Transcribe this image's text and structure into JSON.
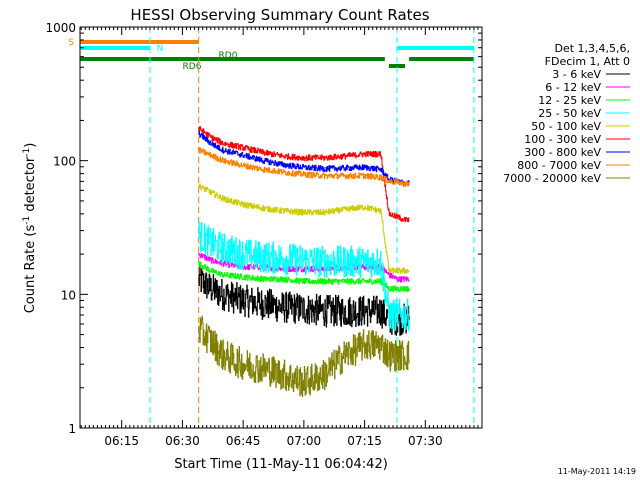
{
  "chart_data": {
    "type": "line",
    "title": "HESSI Observing Summary Count Rates",
    "xlabel": "Start Time (11-May-11 06:04:42)",
    "ylabel_main": "Count Rate (s",
    "ylabel_sup1": "-1",
    "ylabel_mid": " detector",
    "ylabel_sup2": "-1",
    "ylabel_end": ")",
    "y_scale": "log",
    "xlim": [
      "06:04:42",
      "07:44:00"
    ],
    "ylim": [
      1,
      1000
    ],
    "x_ticks": [
      "06:15",
      "06:30",
      "06:45",
      "07:00",
      "07:15",
      "07:30"
    ],
    "y_ticks": [
      "1",
      "10",
      "100",
      "1000"
    ],
    "legend_header": [
      "Det 1,3,4,5,6,",
      "FDecim 1, Att 0"
    ],
    "legend_position": "right",
    "timestamp": "11-May-2011 14:19",
    "series": [
      {
        "name": "3 - 6 keV",
        "color": "#000000",
        "x": [
          "06:34",
          "06:37",
          "06:40",
          "06:45",
          "06:50",
          "06:55",
          "07:00",
          "07:05",
          "07:10",
          "07:15",
          "07:19",
          "07:21",
          "07:23",
          "07:25",
          "07:26"
        ],
        "values": [
          13,
          11,
          10,
          9,
          8.5,
          8,
          7.8,
          7.5,
          7.5,
          7.5,
          7.5,
          6.5,
          6.5,
          6.5,
          6.5
        ]
      },
      {
        "name": "6 - 12 keV",
        "color": "#ff00ff",
        "x": [
          "06:34",
          "06:37",
          "06:40",
          "06:45",
          "06:50",
          "06:55",
          "07:00",
          "07:05",
          "07:10",
          "07:15",
          "07:19",
          "07:21",
          "07:23",
          "07:25",
          "07:26"
        ],
        "values": [
          20,
          18,
          17,
          16,
          16,
          15.5,
          15.5,
          15.5,
          16,
          16,
          16,
          14,
          13,
          13,
          13
        ]
      },
      {
        "name": "12 - 25 keV",
        "color": "#00ff00",
        "x": [
          "06:34",
          "06:37",
          "06:40",
          "06:45",
          "06:50",
          "06:55",
          "07:00",
          "07:05",
          "07:10",
          "07:15",
          "07:19",
          "07:21",
          "07:23",
          "07:25",
          "07:26"
        ],
        "values": [
          17,
          15,
          14,
          13.5,
          13,
          13,
          12.5,
          12.5,
          12.5,
          12.5,
          12.5,
          11,
          11,
          11,
          11
        ]
      },
      {
        "name": "25 - 50 keV",
        "color": "#00ffff",
        "x": [
          "06:34",
          "06:37",
          "06:40",
          "06:45",
          "06:50",
          "06:55",
          "07:00",
          "07:05",
          "07:10",
          "07:15",
          "07:19",
          "07:21",
          "07:23",
          "07:25",
          "07:26"
        ],
        "values": [
          28,
          24,
          22,
          20,
          19,
          18.5,
          18,
          17.5,
          17.5,
          17.5,
          17.5,
          7,
          7,
          7,
          7
        ]
      },
      {
        "name": "50 - 100 keV",
        "color": "#cccc00",
        "x": [
          "06:34",
          "06:37",
          "06:40",
          "06:45",
          "06:50",
          "06:55",
          "07:00",
          "07:05",
          "07:10",
          "07:15",
          "07:19",
          "07:21",
          "07:23",
          "07:25",
          "07:26"
        ],
        "values": [
          65,
          58,
          52,
          47,
          44,
          42,
          41,
          41,
          43,
          45,
          42,
          15,
          15,
          15,
          15
        ]
      },
      {
        "name": "100 - 300 keV",
        "color": "#ff0000",
        "x": [
          "06:34",
          "06:37",
          "06:40",
          "06:45",
          "06:50",
          "06:55",
          "07:00",
          "07:05",
          "07:10",
          "07:15",
          "07:19",
          "07:21",
          "07:23",
          "07:25",
          "07:26"
        ],
        "values": [
          175,
          150,
          135,
          125,
          115,
          108,
          105,
          105,
          108,
          112,
          112,
          40,
          38,
          36,
          36
        ]
      },
      {
        "name": "300 - 800 keV",
        "color": "#0000ff",
        "x": [
          "06:34",
          "06:37",
          "06:40",
          "06:45",
          "06:50",
          "06:55",
          "07:00",
          "07:05",
          "07:10",
          "07:15",
          "07:19",
          "07:21",
          "07:23",
          "07:25",
          "07:26"
        ],
        "values": [
          160,
          135,
          120,
          110,
          100,
          93,
          89,
          87,
          88,
          89,
          86,
          72,
          70,
          68,
          68
        ]
      },
      {
        "name": "800 - 7000 keV",
        "color": "#ff8000",
        "x": [
          "06:34",
          "06:37",
          "06:40",
          "06:45",
          "06:50",
          "06:55",
          "07:00",
          "07:05",
          "07:10",
          "07:15",
          "07:19",
          "07:21",
          "07:23",
          "07:25",
          "07:26"
        ],
        "values": [
          120,
          110,
          100,
          92,
          86,
          82,
          79,
          77,
          77,
          77,
          75,
          70,
          69,
          67,
          67
        ]
      },
      {
        "name": "7000 - 20000 keV",
        "color": "#808000",
        "x": [
          "06:34",
          "06:37",
          "06:40",
          "06:45",
          "06:50",
          "06:55",
          "07:00",
          "07:05",
          "07:10",
          "07:15",
          "07:19",
          "07:21",
          "07:23",
          "07:25",
          "07:26"
        ],
        "values": [
          5.5,
          4.5,
          3.5,
          3,
          2.8,
          2.5,
          2.2,
          2.5,
          3.5,
          4.2,
          4.2,
          3.5,
          3.5,
          3.5,
          3.5
        ]
      }
    ],
    "flag_bars": [
      {
        "label": "S",
        "color": "#ff8000",
        "segments": [
          [
            "06:04:42",
            "06:34"
          ]
        ]
      },
      {
        "label": "N",
        "color": "#00ffff",
        "segments": [
          [
            "06:04:42",
            "06:22"
          ],
          [
            "07:23",
            "07:42"
          ]
        ]
      },
      {
        "label": "RD0",
        "color": "#008000",
        "segments": [
          [
            "06:04:42",
            "07:20"
          ],
          [
            "07:26",
            "07:42"
          ]
        ]
      },
      {
        "label": "RD6",
        "color": "#008000",
        "segments": [
          [
            "07:21",
            "07:25"
          ]
        ]
      }
    ],
    "vertical_markers": [
      {
        "x": "06:04:42",
        "color": "#00ffff"
      },
      {
        "x": "06:22",
        "color": "#00ffff"
      },
      {
        "x": "06:34",
        "color": "#ff8000"
      },
      {
        "x": "07:23",
        "color": "#00ffff"
      },
      {
        "x": "07:42",
        "color": "#00ffff"
      }
    ]
  }
}
